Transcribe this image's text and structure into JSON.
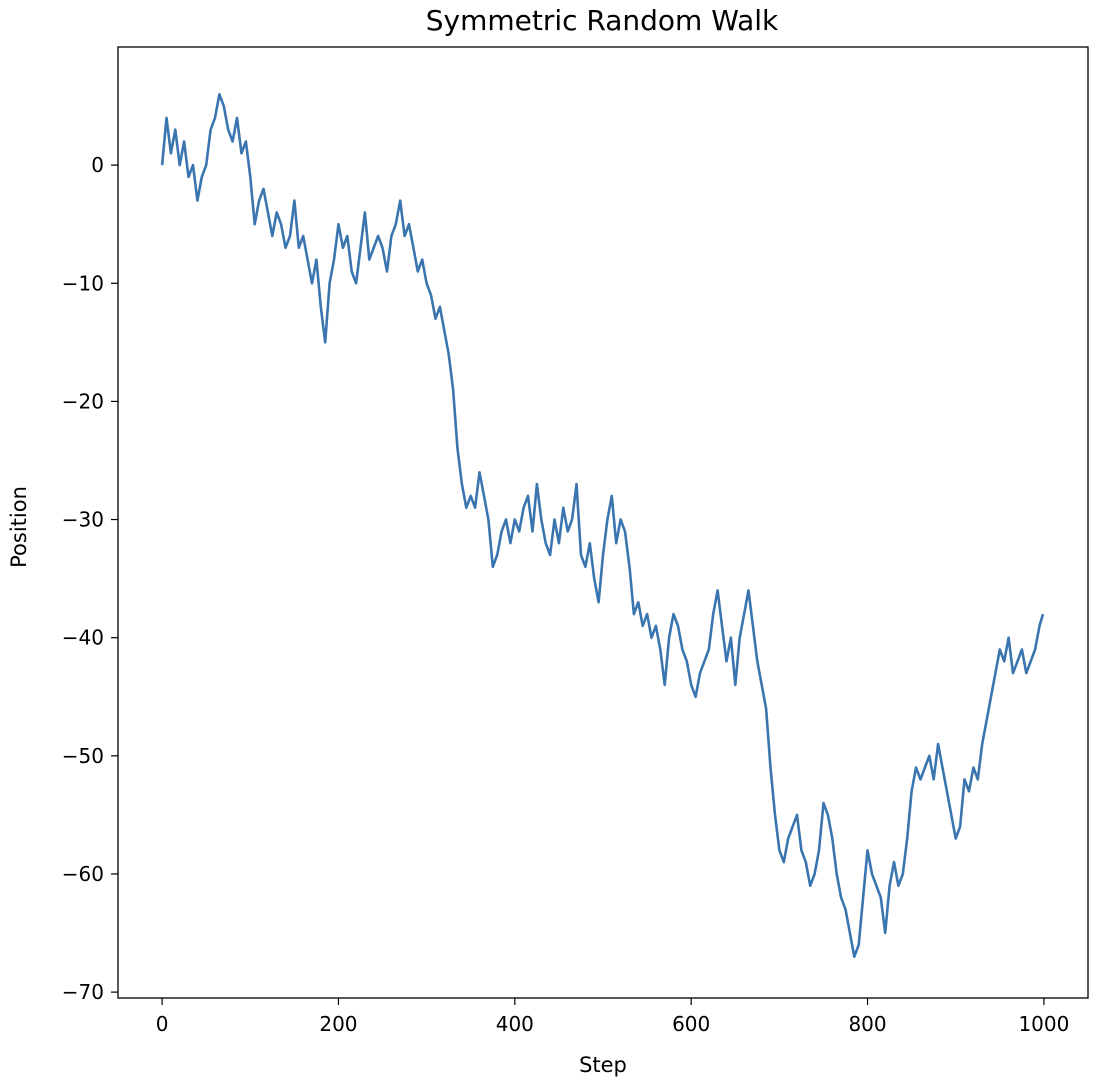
{
  "chart_data": {
    "type": "line",
    "title": "Symmetric Random Walk",
    "xlabel": "Step",
    "ylabel": "Position",
    "xlim": [
      -50,
      1050
    ],
    "ylim": [
      -70.5,
      10
    ],
    "xticks": [
      0,
      200,
      400,
      600,
      800,
      1000
    ],
    "yticks": [
      0,
      -10,
      -20,
      -30,
      -40,
      -50,
      -60,
      -70
    ],
    "xtick_labels": [
      "0",
      "200",
      "400",
      "600",
      "800",
      "1000"
    ],
    "ytick_labels": [
      "0",
      "−10",
      "−20",
      "−30",
      "−40",
      "−50",
      "−60",
      "−70"
    ],
    "grid": false,
    "line_color": "#3a75b0",
    "series": [
      {
        "x": [
          0,
          5,
          10,
          15,
          20,
          25,
          30,
          35,
          40,
          45,
          50,
          55,
          60,
          65,
          70,
          75,
          80,
          85,
          90,
          95,
          100,
          105,
          110,
          115,
          120,
          125,
          130,
          135,
          140,
          145,
          150,
          155,
          160,
          165,
          170,
          175,
          180,
          185,
          190,
          195,
          200,
          205,
          210,
          215,
          220,
          225,
          230,
          235,
          240,
          245,
          250,
          255,
          260,
          265,
          270,
          275,
          280,
          285,
          290,
          295,
          300,
          305,
          310,
          315,
          320,
          325,
          330,
          335,
          340,
          345,
          350,
          355,
          360,
          365,
          370,
          375,
          380,
          385,
          390,
          395,
          400,
          405,
          410,
          415,
          420,
          425,
          430,
          435,
          440,
          445,
          450,
          455,
          460,
          465,
          470,
          475,
          480,
          485,
          490,
          495,
          500,
          505,
          510,
          515,
          520,
          525,
          530,
          535,
          540,
          545,
          550,
          555,
          560,
          565,
          570,
          575,
          580,
          585,
          590,
          595,
          600,
          605,
          610,
          615,
          620,
          625,
          630,
          635,
          640,
          645,
          650,
          655,
          660,
          665,
          670,
          675,
          680,
          685,
          690,
          695,
          700,
          705,
          710,
          715,
          720,
          725,
          730,
          735,
          740,
          745,
          750,
          755,
          760,
          765,
          770,
          775,
          780,
          785,
          790,
          795,
          800,
          805,
          810,
          815,
          820,
          825,
          830,
          835,
          840,
          845,
          850,
          855,
          860,
          865,
          870,
          875,
          880,
          885,
          890,
          895,
          900,
          905,
          910,
          915,
          920,
          925,
          930,
          935,
          940,
          945,
          950,
          955,
          960,
          965,
          970,
          975,
          980,
          985,
          990,
          995,
          999
        ],
        "y": [
          0,
          4,
          1,
          3,
          0,
          2,
          -1,
          0,
          -3,
          -1,
          0,
          3,
          4,
          6,
          5,
          3,
          2,
          4,
          1,
          2,
          -1,
          -5,
          -3,
          -2,
          -4,
          -6,
          -4,
          -5,
          -7,
          -6,
          -3,
          -7,
          -6,
          -8,
          -10,
          -8,
          -12,
          -15,
          -10,
          -8,
          -5,
          -7,
          -6,
          -9,
          -10,
          -7,
          -4,
          -8,
          -7,
          -6,
          -7,
          -9,
          -6,
          -5,
          -3,
          -6,
          -5,
          -7,
          -9,
          -8,
          -10,
          -11,
          -13,
          -12,
          -14,
          -16,
          -19,
          -24,
          -27,
          -29,
          -28,
          -29,
          -26,
          -28,
          -30,
          -34,
          -33,
          -31,
          -30,
          -32,
          -30,
          -31,
          -29,
          -28,
          -31,
          -27,
          -30,
          -32,
          -33,
          -30,
          -32,
          -29,
          -31,
          -30,
          -27,
          -33,
          -34,
          -32,
          -35,
          -37,
          -33,
          -30,
          -28,
          -32,
          -30,
          -31,
          -34,
          -38,
          -37,
          -39,
          -38,
          -40,
          -39,
          -41,
          -44,
          -40,
          -38,
          -39,
          -41,
          -42,
          -44,
          -45,
          -43,
          -42,
          -41,
          -38,
          -36,
          -39,
          -42,
          -40,
          -44,
          -40,
          -38,
          -36,
          -39,
          -42,
          -44,
          -46,
          -51,
          -55,
          -58,
          -59,
          -57,
          -56,
          -55,
          -58,
          -59,
          -61,
          -60,
          -58,
          -54,
          -55,
          -57,
          -60,
          -62,
          -63,
          -65,
          -67,
          -66,
          -62,
          -58,
          -60,
          -61,
          -62,
          -65,
          -61,
          -59,
          -61,
          -60,
          -57,
          -53,
          -51,
          -52,
          -51,
          -50,
          -52,
          -49,
          -51,
          -53,
          -55,
          -57,
          -56,
          -52,
          -53,
          -51,
          -52,
          -49,
          -47,
          -45,
          -43,
          -41,
          -42,
          -40,
          -43,
          -42,
          -41,
          -43,
          -42,
          -41,
          -39,
          -38
        ]
      }
    ]
  }
}
